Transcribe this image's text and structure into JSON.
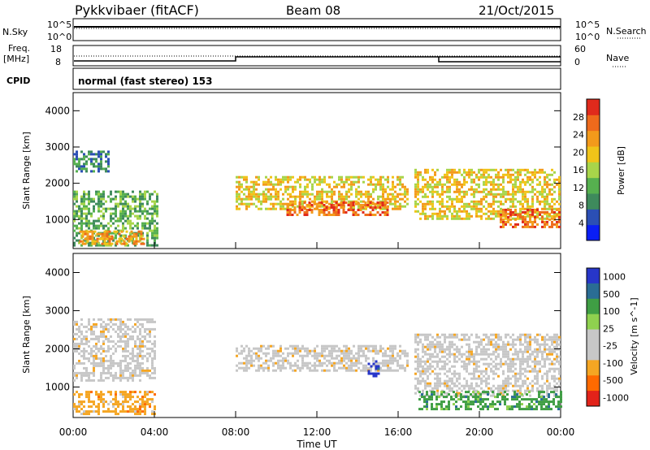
{
  "header": {
    "site": "Pykkvibaer (fitACF)",
    "beam": "Beam 08",
    "date": "21/Oct/2015"
  },
  "summary_panel": {
    "nsky_label": "N.Sky",
    "nsky_ticks": [
      "10^5",
      "10^0"
    ],
    "nsearch_label": "N.Search",
    "nsearch_ticks": [
      "10^5",
      "10^0"
    ],
    "freq_label": "Freq.",
    "freq_unit": "[MHz]",
    "freq_ticks": [
      "18",
      "8"
    ],
    "nave_label": "Nave",
    "nave_ticks": [
      "60",
      "0"
    ],
    "cpid_label": "CPID",
    "cpid_text": "normal (fast stereo) 153"
  },
  "colors": {
    "power": [
      "#0a1ef5",
      "#2b4fb5",
      "#3e8a5c",
      "#56b04f",
      "#a8d54a",
      "#f0c419",
      "#f39a1b",
      "#ee6a1c",
      "#e02a1c"
    ],
    "velocity": [
      "#e2231a",
      "#ff6a00",
      "#f5a623",
      "#c7c7c7",
      "#c7c7c7",
      "#8fd14f",
      "#3f9e44",
      "#2a6d94",
      "#2736c9"
    ],
    "ground_scatter": "#bdbdbd"
  },
  "chart_data": [
    {
      "type": "heatmap",
      "name": "power",
      "ylabel": "Slant Range [km]",
      "ylim": [
        200,
        4500
      ],
      "yticks": [
        "1000",
        "2000",
        "3000",
        "4000"
      ],
      "colorbar": {
        "label": "Power [dB]",
        "range": [
          0,
          32
        ],
        "ticks": [
          "4",
          "8",
          "12",
          "16",
          "20",
          "24",
          "28"
        ]
      },
      "scatter_bands": [
        {
          "start_hr": 0.0,
          "end_hr": 4.2,
          "range_min_km": 300,
          "range_max_km": 1800,
          "power_db": 10
        },
        {
          "start_hr": 0.3,
          "end_hr": 3.5,
          "range_min_km": 300,
          "range_max_km": 700,
          "power_db": 22
        },
        {
          "start_hr": 0.0,
          "end_hr": 1.8,
          "range_min_km": 2300,
          "range_max_km": 2900,
          "power_db": 6
        },
        {
          "start_hr": 8.0,
          "end_hr": 16.5,
          "range_min_km": 1300,
          "range_max_km": 2200,
          "power_db": 20
        },
        {
          "start_hr": 10.5,
          "end_hr": 15.5,
          "range_min_km": 1100,
          "range_max_km": 1500,
          "power_db": 26
        },
        {
          "start_hr": 16.8,
          "end_hr": 24.0,
          "range_min_km": 1000,
          "range_max_km": 2400,
          "power_db": 18
        },
        {
          "start_hr": 21.0,
          "end_hr": 24.0,
          "range_min_km": 800,
          "range_max_km": 1300,
          "power_db": 28
        }
      ]
    },
    {
      "type": "heatmap",
      "name": "velocity",
      "xlabel": "Time UT",
      "ylabel": "Slant Range [km]",
      "ylim": [
        200,
        4500
      ],
      "yticks": [
        "1000",
        "2000",
        "3000",
        "4000"
      ],
      "xlim": [
        0,
        24
      ],
      "xticks": [
        "00:00",
        "04:00",
        "08:00",
        "12:00",
        "16:00",
        "20:00",
        "00:00"
      ],
      "colorbar": {
        "label": "Velocity [m s^-1]",
        "ticks": [
          "1000",
          "500",
          "100",
          "25",
          "-25",
          "-100",
          "-500",
          "-1000"
        ]
      },
      "scatter_bands": [
        {
          "start_hr": 0.0,
          "end_hr": 4.0,
          "range_min_km": 300,
          "range_max_km": 900,
          "velocity_ms": -400
        },
        {
          "start_hr": 0.0,
          "end_hr": 4.0,
          "range_min_km": 1200,
          "range_max_km": 2800,
          "velocity_ms": 0
        },
        {
          "start_hr": 8.0,
          "end_hr": 16.5,
          "range_min_km": 1400,
          "range_max_km": 2100,
          "velocity_ms": 0
        },
        {
          "start_hr": 14.5,
          "end_hr": 15.0,
          "range_min_km": 1300,
          "range_max_km": 1700,
          "velocity_ms": 900
        },
        {
          "start_hr": 16.8,
          "end_hr": 24.0,
          "range_min_km": 800,
          "range_max_km": 2400,
          "velocity_ms": 0
        },
        {
          "start_hr": 17.0,
          "end_hr": 24.0,
          "range_min_km": 400,
          "range_max_km": 900,
          "velocity_ms": 200
        }
      ]
    }
  ]
}
